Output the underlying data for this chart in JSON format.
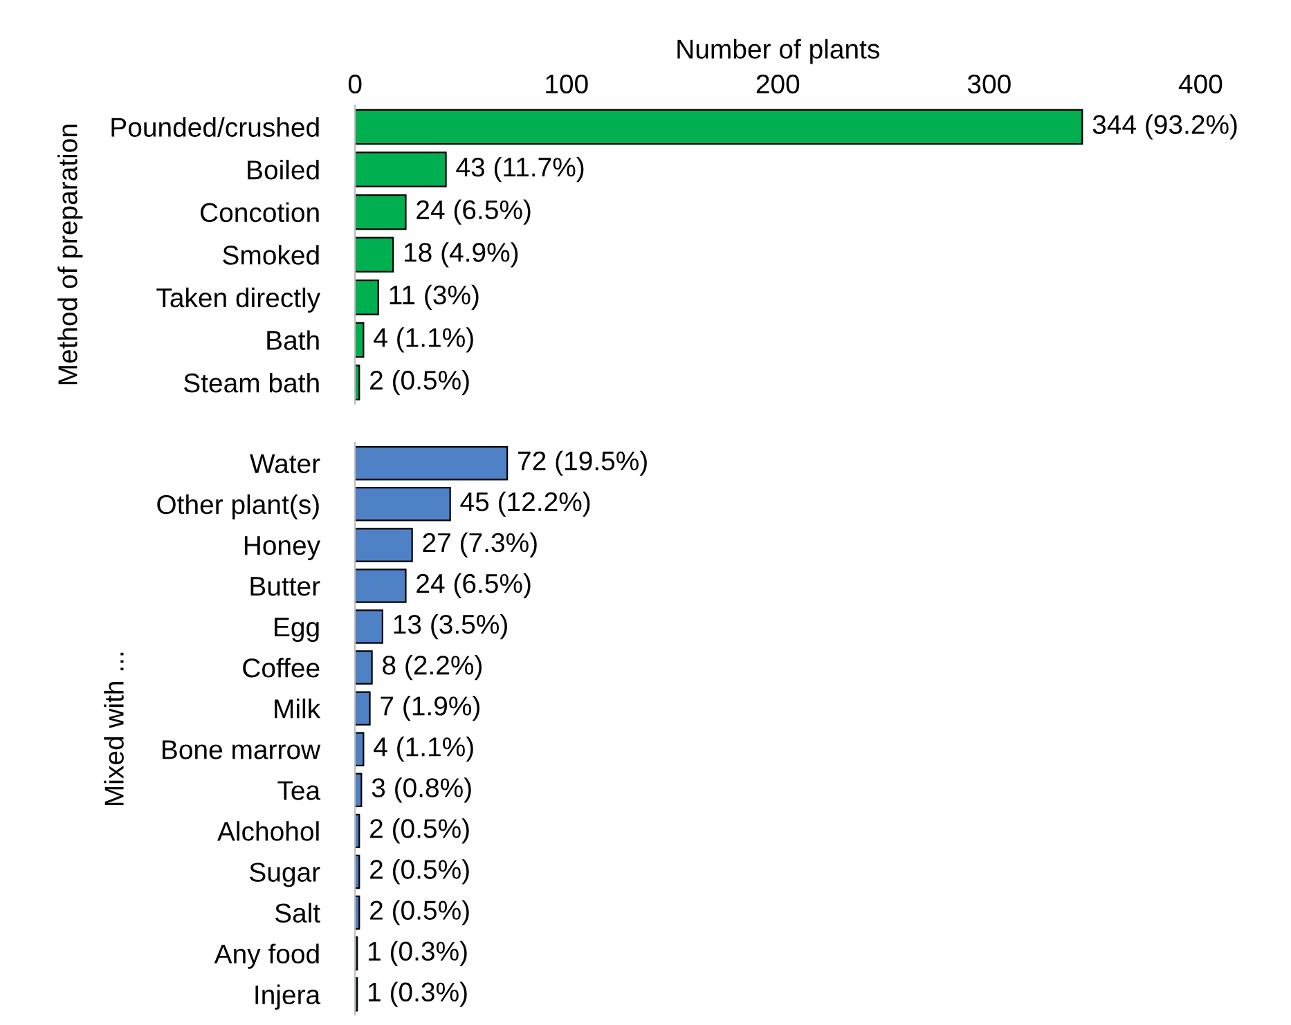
{
  "chart_data": [
    {
      "type": "bar",
      "orientation": "horizontal",
      "xlabel": "Number of plants",
      "ylabel": "Method of preparation",
      "xlim": [
        0,
        400
      ],
      "xticks": [
        0,
        100,
        200,
        300,
        400
      ],
      "color": "#00b050",
      "categories": [
        "Pounded/crushed",
        "Boiled",
        "Concotion",
        "Smoked",
        "Taken directly",
        "Bath",
        "Steam bath"
      ],
      "values": [
        344,
        43,
        24,
        18,
        11,
        4,
        2
      ],
      "value_labels": [
        "344 (93.2%)",
        "43 (11.7%)",
        "24 (6.5%)",
        "18 (4.9%)",
        "11 (3%)",
        "4 (1.1%)",
        "2 (0.5%)"
      ]
    },
    {
      "type": "bar",
      "orientation": "horizontal",
      "ylabel": "Mixed with ...",
      "xlim": [
        0,
        400
      ],
      "tick_labels": "y",
      "color": "#4f81c7",
      "categories": [
        "Water",
        "Other plant(s)",
        "Honey",
        "Butter",
        "Egg",
        "Coffee",
        "Milk",
        "Bone marrow",
        "Tea",
        "Alchohol",
        "Sugar",
        "Salt",
        "Any food",
        "Injera"
      ],
      "values": [
        72,
        45,
        27,
        24,
        13,
        8,
        7,
        4,
        3,
        2,
        2,
        2,
        1,
        1
      ],
      "value_labels": [
        "72 (19.5%)",
        "45 (12.2%)",
        "27 (7.3%)",
        "24 (6.5%)",
        "13 (3.5%)",
        "8 (2.2%)",
        "7 (1.9%)",
        "4 (1.1%)",
        "3 (0.8%)",
        "2 (0.5%)",
        "2 (0.5%)",
        "2 (0.5%)",
        "1 (0.3%)",
        "1 (0.3%)"
      ]
    }
  ]
}
